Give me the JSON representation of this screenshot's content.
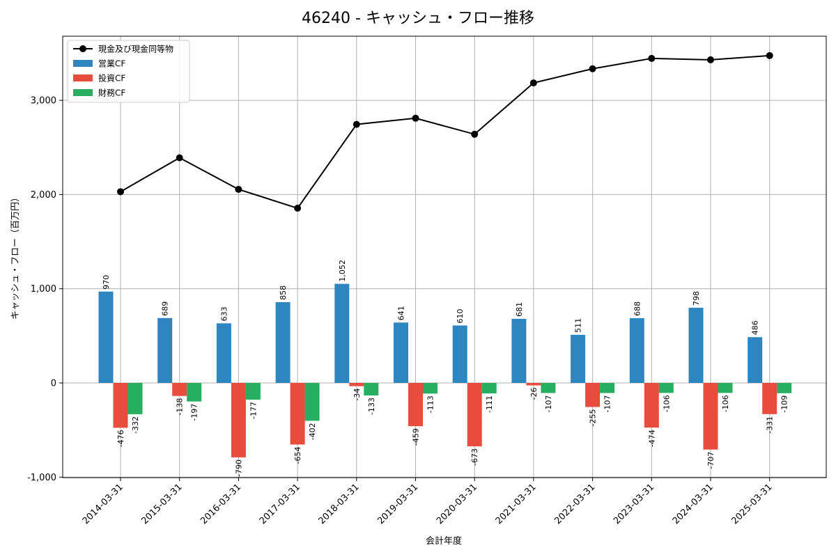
{
  "chart_data": {
    "type": "bar",
    "title": "46240 - キャッシュ・フロー推移",
    "xlabel": "会計年度",
    "ylabel": "キャッシュ・フロー（百万円）",
    "ylim": [
      -1000,
      3700
    ],
    "yticks": [
      -1000,
      0,
      1000,
      2000,
      3000
    ],
    "ytick_labels": [
      "-1,000",
      "0",
      "1,000",
      "2,000",
      "3,000"
    ],
    "grid": true,
    "legend_position": "top-left",
    "categories": [
      "2014-03-31",
      "2015-03-31",
      "2016-03-31",
      "2017-03-31",
      "2018-03-31",
      "2019-03-31",
      "2020-03-31",
      "2021-03-31",
      "2022-03-31",
      "2023-03-31",
      "2024-03-31",
      "2025-03-31"
    ],
    "series": [
      {
        "name": "営業CF",
        "kind": "bar",
        "color": "#2e86c1",
        "values": [
          970,
          689,
          633,
          858,
          1052,
          641,
          610,
          681,
          511,
          688,
          798,
          486
        ],
        "labels": [
          "970",
          "689",
          "633",
          "858",
          "1,052",
          "641",
          "610",
          "681",
          "511",
          "688",
          "798",
          "486"
        ]
      },
      {
        "name": "投資CF",
        "kind": "bar",
        "color": "#e74c3c",
        "values": [
          -476,
          -138,
          -790,
          -654,
          -34,
          -459,
          -673,
          -26,
          -255,
          -474,
          -707,
          -331
        ],
        "labels": [
          "-476",
          "-138",
          "-790",
          "-654",
          "-34",
          "-459",
          "-673",
          "-26",
          "-255",
          "-474",
          "-707",
          "-331"
        ]
      },
      {
        "name": "財務CF",
        "kind": "bar",
        "color": "#27ae60",
        "values": [
          -332,
          -197,
          -177,
          -402,
          -133,
          -113,
          -111,
          -107,
          -107,
          -106,
          -106,
          -109
        ],
        "labels": [
          "-332",
          "-197",
          "-177",
          "-402",
          "-133",
          "-113",
          "-111",
          "-107",
          "-107",
          "-106",
          "-106",
          "-109"
        ]
      },
      {
        "name": "現金及び現金同等物",
        "kind": "line",
        "color": "#000000",
        "values": [
          2030,
          2390,
          2055,
          1855,
          2745,
          2810,
          2640,
          3185,
          3335,
          3445,
          3430,
          3475
        ]
      }
    ]
  }
}
